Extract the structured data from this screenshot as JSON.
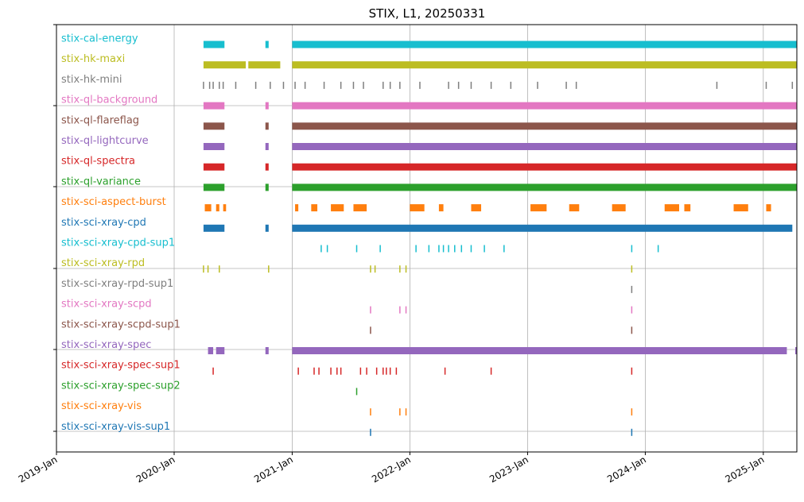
{
  "chart_data": {
    "type": "timeline",
    "title": "STIX, L1, 20250331",
    "x_ticks": [
      "2019-Jan",
      "2020-Jan",
      "2021-Jan",
      "2022-Jan",
      "2023-Jan",
      "2024-Jan",
      "2025-Jan"
    ],
    "x_range": [
      "2019-01-01",
      "2025-04-15"
    ],
    "grid": true,
    "series": [
      {
        "name": "stix-cal-energy",
        "color": "#17becf",
        "kind": "bars",
        "intervals": [
          [
            "2020-04-01",
            "2020-06-05"
          ],
          [
            "2020-10-10",
            "2020-10-20"
          ],
          [
            "2021-01-01",
            "2025-04-15"
          ]
        ]
      },
      {
        "name": "stix-hk-maxi",
        "color": "#bcbd22",
        "kind": "bars",
        "intervals": [
          [
            "2020-04-01",
            "2020-08-10"
          ],
          [
            "2020-08-18",
            "2020-11-25"
          ],
          [
            "2021-01-01",
            "2025-04-15"
          ]
        ]
      },
      {
        "name": "stix-hk-mini",
        "color": "#7f7f7f",
        "kind": "ticks",
        "dates": [
          "2020-04-01",
          "2020-04-20",
          "2020-05-01",
          "2020-05-20",
          "2020-06-01",
          "2020-07-10",
          "2020-09-10",
          "2020-10-25",
          "2020-12-05",
          "2021-01-10",
          "2021-02-10",
          "2021-04-10",
          "2021-06-01",
          "2021-07-10",
          "2021-08-10",
          "2021-10-10",
          "2021-11-01",
          "2021-12-01",
          "2022-02-01",
          "2022-05-01",
          "2022-06-01",
          "2022-07-10",
          "2022-09-10",
          "2022-11-10",
          "2023-02-01",
          "2023-05-01",
          "2023-06-01",
          "2024-08-10",
          "2025-01-10",
          "2025-04-01"
        ]
      },
      {
        "name": "stix-ql-background",
        "color": "#e377c2",
        "kind": "bars",
        "intervals": [
          [
            "2020-04-01",
            "2020-06-05"
          ],
          [
            "2020-10-10",
            "2020-10-20"
          ],
          [
            "2021-01-01",
            "2025-04-15"
          ]
        ]
      },
      {
        "name": "stix-ql-flareflag",
        "color": "#8c564b",
        "kind": "bars",
        "intervals": [
          [
            "2020-04-01",
            "2020-06-05"
          ],
          [
            "2020-10-10",
            "2020-10-20"
          ],
          [
            "2021-01-01",
            "2025-04-15"
          ]
        ]
      },
      {
        "name": "stix-ql-lightcurve",
        "color": "#9467bd",
        "kind": "bars",
        "intervals": [
          [
            "2020-04-01",
            "2020-06-05"
          ],
          [
            "2020-10-10",
            "2020-10-20"
          ],
          [
            "2021-01-01",
            "2025-04-15"
          ]
        ]
      },
      {
        "name": "stix-ql-spectra",
        "color": "#d62728",
        "kind": "bars",
        "intervals": [
          [
            "2020-04-01",
            "2020-06-05"
          ],
          [
            "2020-10-10",
            "2020-10-20"
          ],
          [
            "2021-01-01",
            "2025-04-15"
          ]
        ]
      },
      {
        "name": "stix-ql-variance",
        "color": "#2ca02c",
        "kind": "bars",
        "intervals": [
          [
            "2020-04-01",
            "2020-06-05"
          ],
          [
            "2020-10-10",
            "2020-10-20"
          ],
          [
            "2021-01-01",
            "2025-04-15"
          ]
        ]
      },
      {
        "name": "stix-sci-aspect-burst",
        "color": "#ff7f0e",
        "kind": "bars",
        "intervals": [
          [
            "2020-04-05",
            "2020-04-25"
          ],
          [
            "2020-05-10",
            "2020-05-20"
          ],
          [
            "2020-06-01",
            "2020-06-10"
          ],
          [
            "2021-01-10",
            "2021-01-20"
          ],
          [
            "2021-03-01",
            "2021-03-20"
          ],
          [
            "2021-05-01",
            "2021-06-10"
          ],
          [
            "2021-07-10",
            "2021-08-20"
          ],
          [
            "2022-01-01",
            "2022-02-15"
          ],
          [
            "2022-04-01",
            "2022-04-15"
          ],
          [
            "2022-07-10",
            "2022-08-10"
          ],
          [
            "2023-01-10",
            "2023-03-01"
          ],
          [
            "2023-05-10",
            "2023-06-10"
          ],
          [
            "2023-09-20",
            "2023-11-01"
          ],
          [
            "2024-03-01",
            "2024-04-15"
          ],
          [
            "2024-05-01",
            "2024-05-20"
          ],
          [
            "2024-10-01",
            "2024-11-15"
          ],
          [
            "2025-01-10",
            "2025-01-25"
          ]
        ]
      },
      {
        "name": "stix-sci-xray-cpd",
        "color": "#1f77b4",
        "kind": "bars",
        "intervals": [
          [
            "2020-04-01",
            "2020-06-05"
          ],
          [
            "2020-10-10",
            "2020-10-20"
          ],
          [
            "2021-01-01",
            "2025-04-01"
          ]
        ]
      },
      {
        "name": "stix-sci-xray-cpd-sup1",
        "color": "#17becf",
        "kind": "ticks",
        "dates": [
          "2021-04-01",
          "2021-04-20",
          "2021-07-20",
          "2021-10-01",
          "2022-01-20",
          "2022-03-01",
          "2022-04-01",
          "2022-04-15",
          "2022-05-01",
          "2022-05-20",
          "2022-06-10",
          "2022-07-10",
          "2022-08-20",
          "2022-10-20",
          "2023-11-20",
          "2024-02-10"
        ]
      },
      {
        "name": "stix-sci-xray-rpd",
        "color": "#bcbd22",
        "kind": "ticks",
        "dates": [
          "2020-04-01",
          "2020-04-15",
          "2020-05-20",
          "2020-10-20",
          "2021-09-01",
          "2021-09-15",
          "2021-12-01",
          "2021-12-20",
          "2023-11-20"
        ]
      },
      {
        "name": "stix-sci-xray-rpd-sup1",
        "color": "#7f7f7f",
        "kind": "ticks",
        "dates": [
          "2023-11-20"
        ]
      },
      {
        "name": "stix-sci-xray-scpd",
        "color": "#e377c2",
        "kind": "ticks",
        "dates": [
          "2021-09-01",
          "2021-12-01",
          "2021-12-20",
          "2023-11-20"
        ]
      },
      {
        "name": "stix-sci-xray-scpd-sup1",
        "color": "#8c564b",
        "kind": "ticks",
        "dates": [
          "2021-09-01",
          "2023-11-20"
        ]
      },
      {
        "name": "stix-sci-xray-spec",
        "color": "#9467bd",
        "kind": "bars",
        "intervals": [
          [
            "2020-04-15",
            "2020-05-01"
          ],
          [
            "2020-05-10",
            "2020-06-05"
          ],
          [
            "2020-10-10",
            "2020-10-20"
          ],
          [
            "2021-01-01",
            "2025-03-15"
          ],
          [
            "2025-04-10",
            "2025-04-15"
          ]
        ]
      },
      {
        "name": "stix-sci-xray-spec-sup1",
        "color": "#d62728",
        "kind": "ticks",
        "dates": [
          "2020-05-01",
          "2021-01-20",
          "2021-03-10",
          "2021-03-25",
          "2021-05-01",
          "2021-05-20",
          "2021-06-01",
          "2021-08-01",
          "2021-08-20",
          "2021-09-20",
          "2021-10-10",
          "2021-10-20",
          "2021-11-01",
          "2021-11-20",
          "2022-04-20",
          "2022-09-10",
          "2023-11-20"
        ]
      },
      {
        "name": "stix-sci-xray-spec-sup2",
        "color": "#2ca02c",
        "kind": "ticks",
        "dates": [
          "2021-07-20"
        ]
      },
      {
        "name": "stix-sci-xray-vis",
        "color": "#ff7f0e",
        "kind": "ticks",
        "dates": [
          "2021-09-01",
          "2021-12-01",
          "2021-12-20",
          "2023-11-20"
        ]
      },
      {
        "name": "stix-sci-xray-vis-sup1",
        "color": "#1f77b4",
        "kind": "ticks",
        "dates": [
          "2021-09-01",
          "2023-11-20"
        ]
      }
    ]
  }
}
